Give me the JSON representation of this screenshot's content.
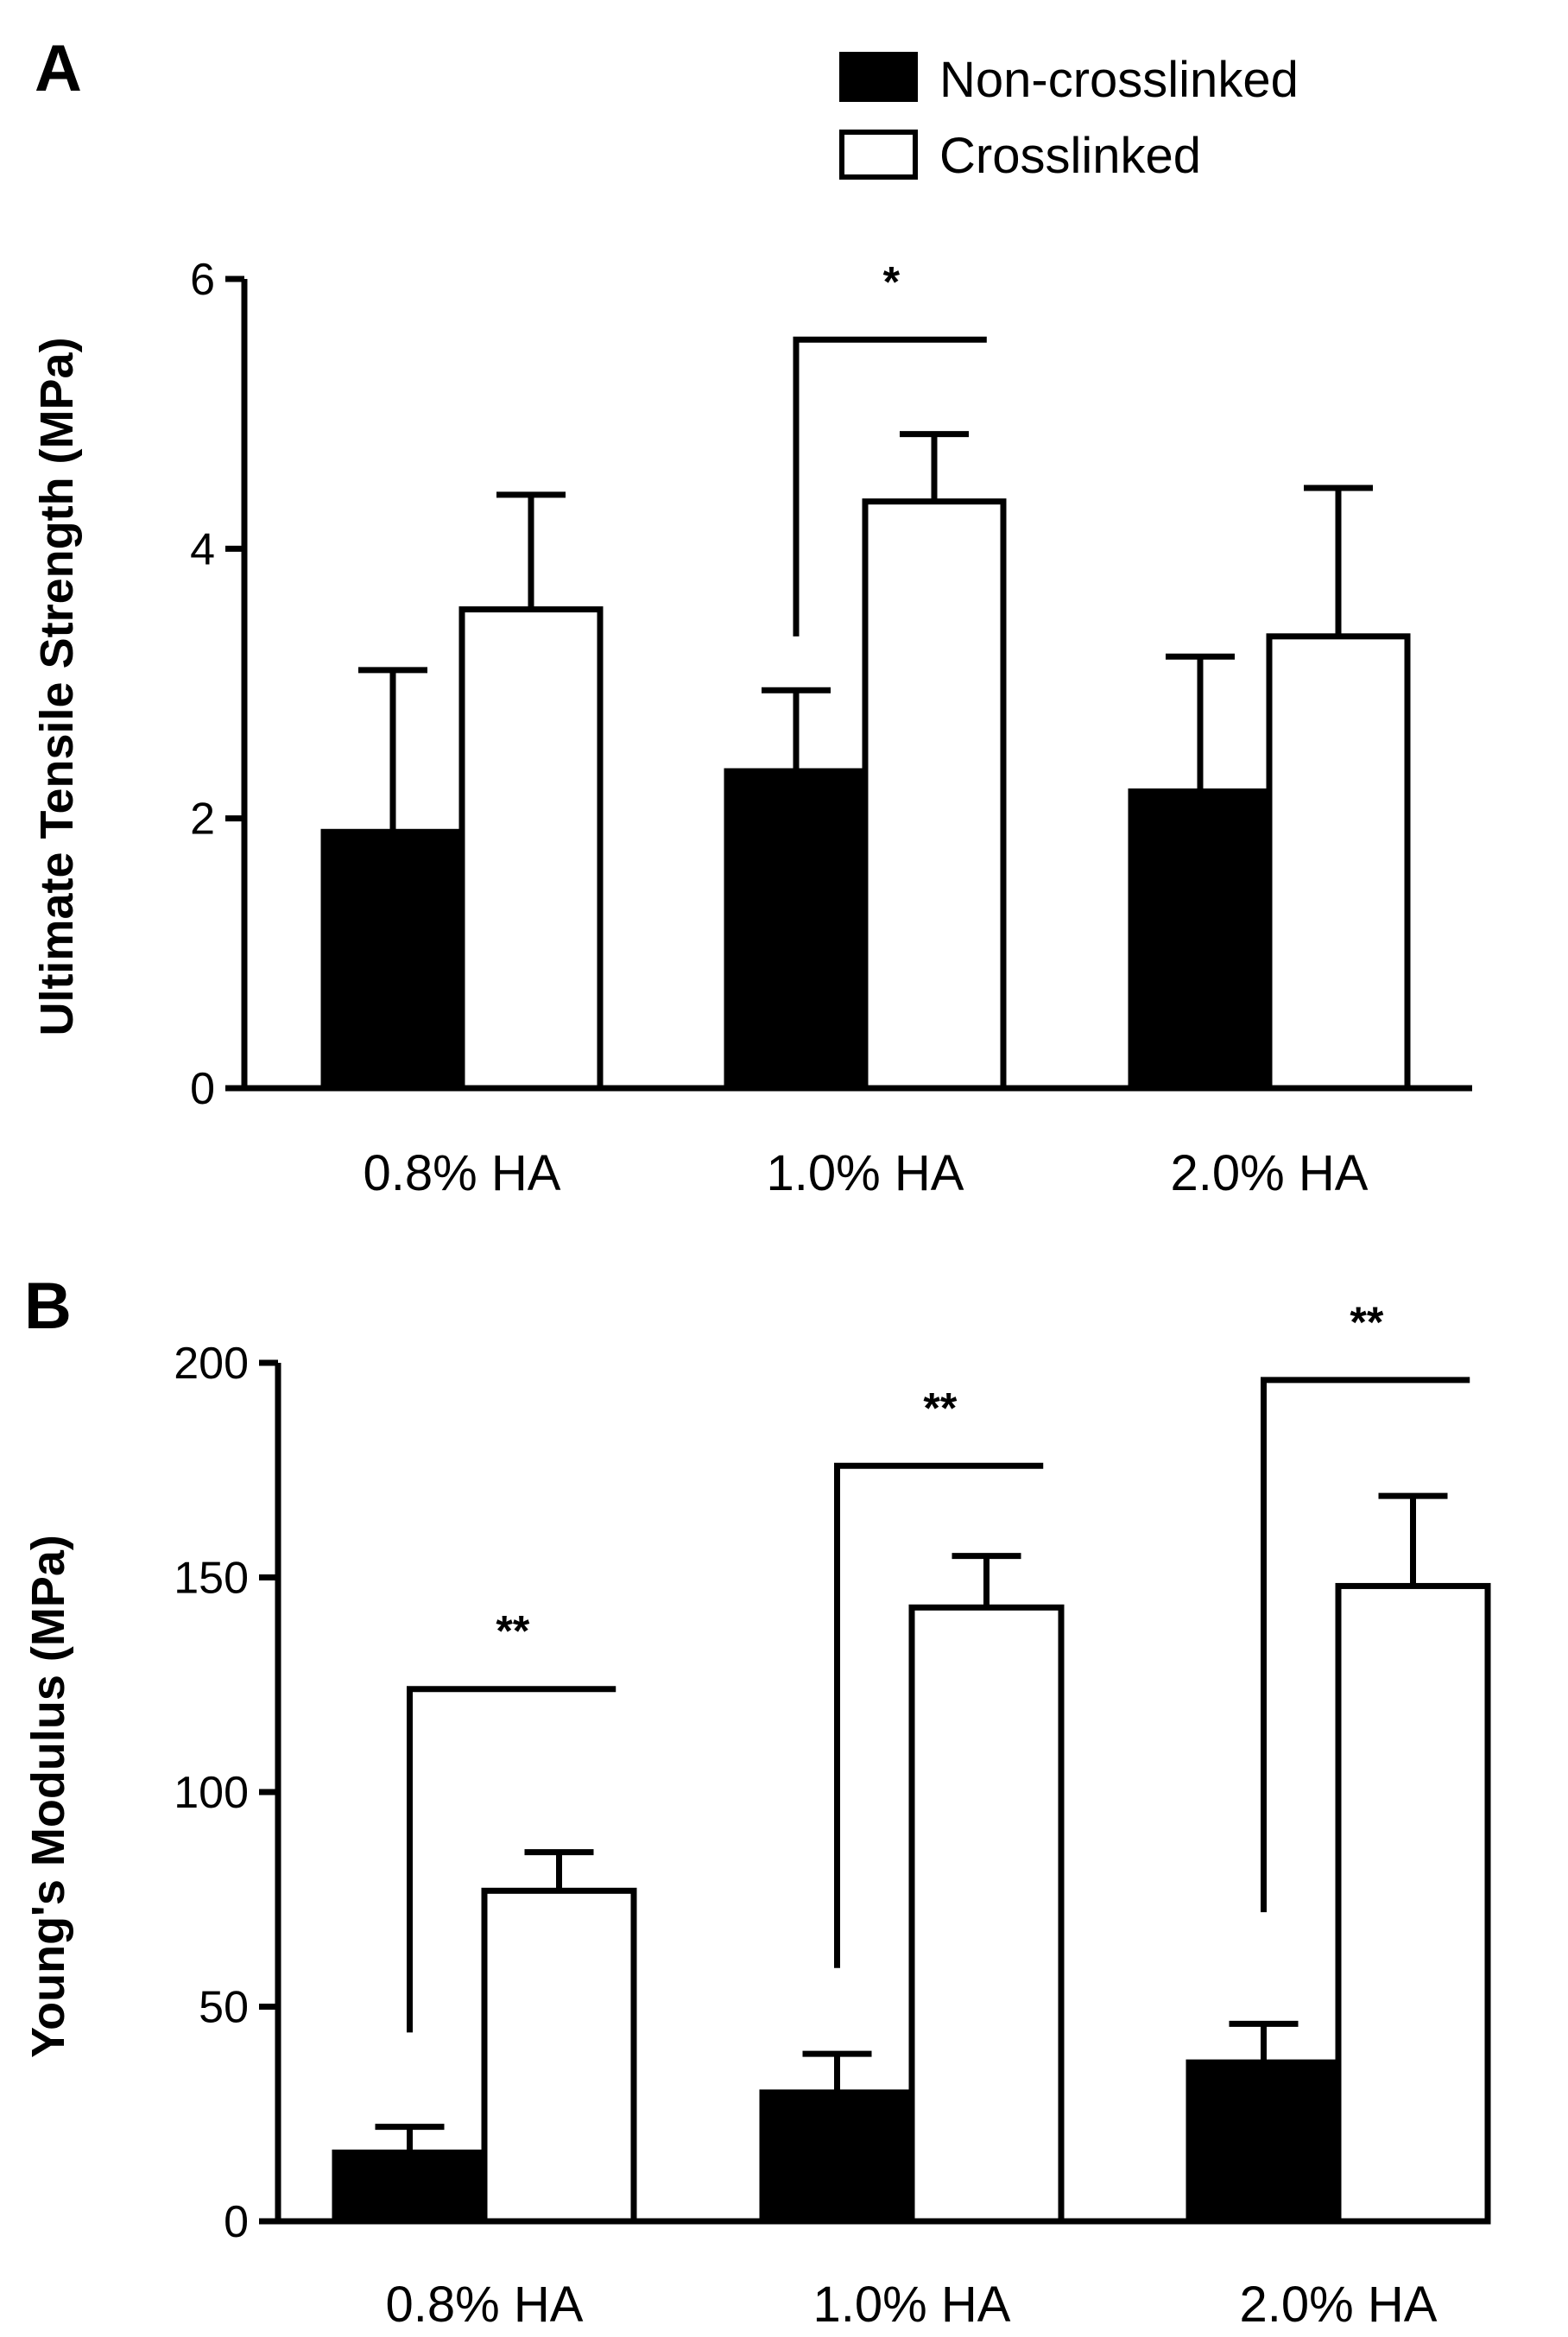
{
  "legend": {
    "items": [
      {
        "label": "Non-crosslinked",
        "fill": "#000000"
      },
      {
        "label": "Crosslinked",
        "fill": "#ffffff"
      }
    ]
  },
  "chart_data": [
    {
      "panel": "A",
      "type": "bar",
      "title": "",
      "xlabel": "",
      "ylabel": "Ultimate Tensile Strength (MPa)",
      "ylim": [
        0,
        6
      ],
      "yticks": [
        0,
        2,
        4,
        6
      ],
      "grid": false,
      "categories": [
        "0.8% HA",
        "1.0% HA",
        "2.0% HA"
      ],
      "series": [
        {
          "name": "Non-crosslinked",
          "color": "#000000",
          "values": [
            1.9,
            2.35,
            2.2
          ],
          "errors": [
            1.2,
            0.6,
            1.0
          ]
        },
        {
          "name": "Crosslinked",
          "color": "#ffffff",
          "values": [
            3.55,
            4.35,
            3.35
          ],
          "errors": [
            0.85,
            0.5,
            1.1
          ]
        }
      ],
      "significance": [
        {
          "category_index": 1,
          "label": "*",
          "left_y": 3.35,
          "top_y": 5.55
        }
      ]
    },
    {
      "panel": "B",
      "type": "bar",
      "title": "",
      "xlabel": "",
      "ylabel": "Young's Modulus (MPa)",
      "ylim": [
        0,
        200
      ],
      "yticks": [
        0,
        50,
        100,
        150,
        200
      ],
      "grid": false,
      "categories": [
        "0.8% HA",
        "1.0% HA",
        "2.0% HA"
      ],
      "series": [
        {
          "name": "Non-crosslinked",
          "color": "#000000",
          "values": [
            16,
            30,
            37
          ],
          "errors": [
            6,
            9,
            9
          ]
        },
        {
          "name": "Crosslinked",
          "color": "#ffffff",
          "values": [
            77,
            143,
            148
          ],
          "errors": [
            9,
            12,
            21
          ]
        }
      ],
      "significance": [
        {
          "category_index": 0,
          "label": "**",
          "left_y": 44,
          "top_y": 124
        },
        {
          "category_index": 1,
          "label": "**",
          "left_y": 59,
          "top_y": 176
        },
        {
          "category_index": 2,
          "label": "**",
          "left_y": 72,
          "top_y": 196
        }
      ]
    }
  ]
}
